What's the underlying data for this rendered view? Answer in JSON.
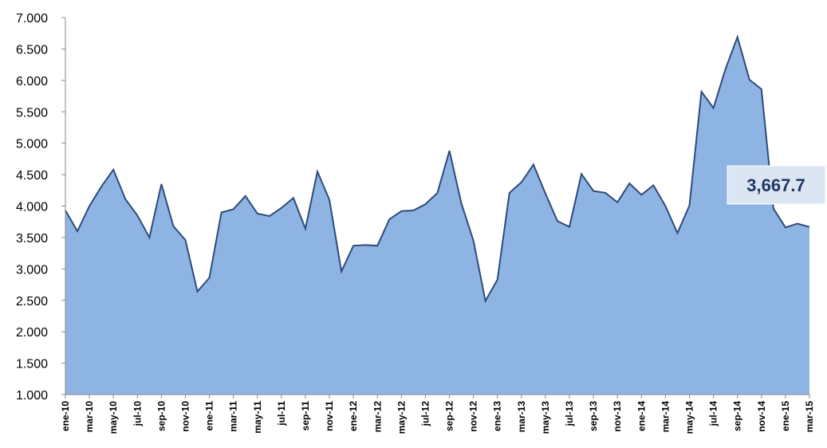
{
  "chart_data": {
    "type": "area",
    "categories": [
      "ene-10",
      null,
      "mar-10",
      null,
      "may-10",
      null,
      "jul-10",
      null,
      "sep-10",
      null,
      "nov-10",
      null,
      "ene-11",
      null,
      "mar-11",
      null,
      "may-11",
      null,
      "jul-11",
      null,
      "sep-11",
      null,
      "nov-11",
      null,
      "ene-12",
      null,
      "mar-12",
      null,
      "may-12",
      null,
      "jul-12",
      null,
      "sep-12",
      null,
      "nov-12",
      null,
      "ene-13",
      null,
      "mar-13",
      null,
      "may-13",
      null,
      "jul-13",
      null,
      "sep-13",
      null,
      "nov-13",
      null,
      "ene-14",
      null,
      "mar-14",
      null,
      "may-14",
      null,
      "jul-14",
      null,
      "sep-14",
      null,
      "nov-14",
      null,
      "ene-15",
      null,
      "mar-15"
    ],
    "values": [
      3930,
      3600,
      4000,
      4310,
      4580,
      4110,
      3850,
      3500,
      4350,
      3680,
      3460,
      2640,
      2860,
      3900,
      3950,
      4160,
      3880,
      3840,
      3970,
      4130,
      3640,
      4550,
      4100,
      2960,
      3370,
      3380,
      3370,
      3790,
      3920,
      3930,
      4030,
      4210,
      4880,
      4040,
      3450,
      2490,
      2830,
      4210,
      4380,
      4660,
      4200,
      3760,
      3670,
      4510,
      4240,
      4210,
      4060,
      4360,
      4180,
      4330,
      4000,
      3570,
      4010,
      5820,
      5560,
      6180,
      6690,
      6010,
      5860,
      3960,
      3660,
      3720,
      3667.7
    ],
    "value_labels": [
      null,
      null,
      null,
      null,
      null,
      null,
      null,
      null,
      null,
      null,
      null,
      null,
      null,
      null,
      null,
      null,
      null,
      null,
      null,
      null,
      null,
      null,
      null,
      null,
      null,
      null,
      null,
      null,
      null,
      null,
      null,
      null,
      null,
      null,
      null,
      null,
      null,
      null,
      null,
      null,
      null,
      null,
      null,
      null,
      null,
      null,
      null,
      null,
      null,
      null,
      null,
      null,
      null,
      null,
      null,
      null,
      null,
      null,
      null,
      null,
      null,
      null,
      "3,667.7"
    ],
    "color": "#8EB4E3",
    "line_color": "#2E4B78",
    "ylim": [
      1000,
      7000
    ],
    "yticks": [
      {
        "value": 1000,
        "label": "1.000"
      },
      {
        "value": 1500,
        "label": "1.500"
      },
      {
        "value": 2000,
        "label": "2.000"
      },
      {
        "value": 2500,
        "label": "2.500"
      },
      {
        "value": 3000,
        "label": "3.000"
      },
      {
        "value": 3500,
        "label": "3.500"
      },
      {
        "value": 4000,
        "label": "4.000"
      },
      {
        "value": 4500,
        "label": "4.500"
      },
      {
        "value": 5000,
        "label": "5.000"
      },
      {
        "value": 5500,
        "label": "5.500"
      },
      {
        "value": 6000,
        "label": "6.000"
      },
      {
        "value": 6500,
        "label": "6.500"
      },
      {
        "value": 7000,
        "label": "7.000"
      }
    ]
  }
}
